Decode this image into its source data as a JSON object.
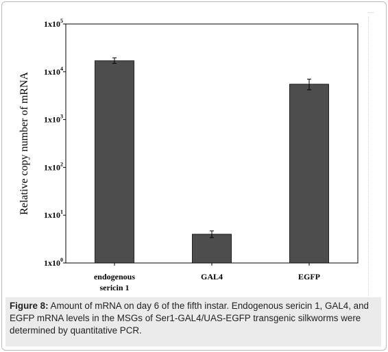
{
  "chart_data": {
    "type": "bar",
    "categories": [
      {
        "lines": [
          "endogenous",
          "sericin 1"
        ]
      },
      {
        "lines": [
          "GAL4"
        ]
      },
      {
        "lines": [
          "EGFP"
        ]
      }
    ],
    "values": [
      17000,
      4,
      5500
    ],
    "error_low": [
      15000,
      3.4,
      4200
    ],
    "error_high": [
      19500,
      4.7,
      7000
    ],
    "ylabel": "Relative copy number of mRNA",
    "xlabel": "",
    "yscale": "log",
    "ylim": [
      1,
      100000
    ],
    "yticks": [
      {
        "base": "1x10",
        "exp": "0",
        "value": 1
      },
      {
        "base": "1x10",
        "exp": "1",
        "value": 10
      },
      {
        "base": "1x10",
        "exp": "2",
        "value": 100
      },
      {
        "base": "1x10",
        "exp": "3",
        "value": 1000
      },
      {
        "base": "1x10",
        "exp": "4",
        "value": 10000
      },
      {
        "base": "1x10",
        "exp": "5",
        "value": 100000
      }
    ],
    "bar_color": "#4d4d4d",
    "grid": false
  },
  "caption": {
    "label": "Figure 8:",
    "text": " Amount of mRNA on day 6 of the fifth instar. Endogenous sericin 1, GAL4, and EGFP mRNA levels in the MSGs of Ser1-GAL4/UAS-EGFP transgenic silkworms were determined by quantitative PCR."
  }
}
